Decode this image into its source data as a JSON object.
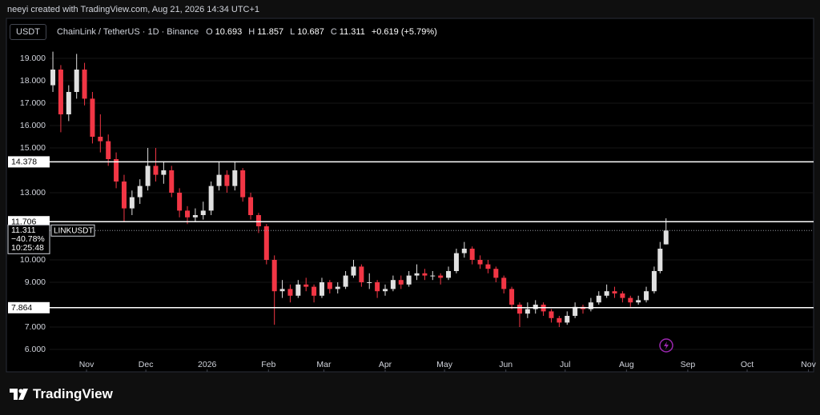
{
  "header": "neeyi created with TradingView.com, Aug 21, 2026 14:34 UTC+1",
  "footer": "TradingView",
  "chart_data": {
    "type": "candlestick",
    "symbol": "USDT",
    "title": "ChainLink / TetherUS · 1D · Binance",
    "ohlc_labels": {
      "open": "O",
      "high": "H",
      "low": "L",
      "close": "C"
    },
    "change": "+0.619 (+5.79%)",
    "up_color": "#e0e0e0",
    "down_color": "#f23645",
    "x": [
      0,
      4,
      8,
      12,
      16,
      20,
      24,
      28,
      32,
      36,
      40,
      44,
      48,
      52,
      56,
      60,
      64,
      68,
      72,
      76,
      80,
      84,
      88,
      92,
      96,
      100,
      104,
      108,
      112,
      116,
      120,
      124,
      128,
      132,
      136,
      140,
      144,
      148,
      152,
      156,
      160,
      164,
      168,
      172,
      176,
      180,
      184,
      188,
      192,
      196,
      200,
      204,
      208,
      212,
      216,
      220,
      224,
      228,
      232,
      236,
      240,
      244,
      248,
      252,
      256,
      260,
      264,
      268,
      272,
      276,
      280,
      284,
      288,
      292,
      296,
      300,
      304,
      307,
      310
    ],
    "open": [
      17.8,
      18.5,
      16.5,
      17.5,
      18.5,
      17.2,
      15.5,
      15.3,
      14.5,
      13.5,
      12.3,
      12.8,
      13.3,
      14.2,
      13.8,
      14.0,
      13.0,
      12.2,
      11.9,
      12.0,
      12.2,
      13.3,
      13.8,
      13.3,
      14.0,
      12.8,
      12.0,
      11.5,
      10.0,
      8.6,
      8.7,
      8.4,
      8.9,
      8.8,
      8.4,
      9.0,
      8.7,
      8.8,
      9.3,
      9.7,
      9.0,
      9.0,
      8.6,
      8.7,
      9.1,
      8.9,
      9.3,
      9.4,
      9.3,
      9.3,
      9.2,
      9.5,
      10.3,
      10.5,
      10.0,
      9.8,
      9.6,
      9.2,
      8.7,
      8.0,
      7.6,
      7.8,
      8.0,
      7.7,
      7.4,
      7.2,
      7.5,
      7.9,
      7.8,
      8.1,
      8.4,
      8.6,
      8.5,
      8.3,
      8.1,
      8.2,
      8.6,
      9.5,
      10.693
    ],
    "high": [
      19.3,
      18.7,
      17.8,
      19.2,
      18.8,
      17.5,
      16.5,
      15.6,
      14.8,
      13.8,
      13.1,
      13.6,
      15.0,
      15.0,
      14.4,
      14.2,
      13.2,
      12.4,
      12.3,
      12.6,
      13.5,
      14.4,
      14.0,
      14.4,
      14.1,
      13.0,
      12.1,
      11.6,
      10.2,
      9.1,
      8.9,
      9.1,
      9.2,
      8.9,
      9.2,
      9.1,
      9.0,
      9.5,
      10.0,
      9.8,
      9.4,
      9.1,
      8.9,
      9.3,
      9.3,
      9.5,
      9.8,
      9.6,
      9.5,
      9.4,
      9.7,
      10.5,
      10.8,
      10.6,
      10.2,
      10.0,
      9.7,
      9.3,
      8.8,
      8.1,
      8.1,
      8.2,
      8.1,
      7.8,
      7.5,
      7.7,
      8.1,
      8.0,
      8.3,
      8.6,
      8.9,
      8.8,
      8.6,
      8.4,
      8.4,
      8.8,
      9.7,
      10.8,
      11.857
    ],
    "low": [
      17.5,
      15.7,
      16.2,
      17.2,
      16.9,
      15.2,
      14.8,
      14.2,
      13.2,
      11.7,
      12.0,
      12.5,
      13.1,
      13.5,
      13.4,
      12.8,
      11.9,
      11.6,
      11.7,
      11.8,
      12.0,
      13.1,
      13.0,
      13.1,
      12.6,
      11.8,
      11.2,
      9.8,
      7.1,
      8.3,
      8.1,
      8.3,
      8.6,
      8.1,
      8.3,
      8.5,
      8.5,
      8.7,
      9.2,
      8.8,
      8.7,
      8.3,
      8.4,
      8.6,
      8.7,
      8.8,
      9.1,
      9.1,
      9.1,
      8.9,
      9.1,
      9.4,
      10.1,
      9.8,
      9.6,
      9.4,
      9.0,
      8.5,
      7.8,
      7.0,
      7.4,
      7.6,
      7.5,
      7.2,
      7.0,
      7.1,
      7.4,
      7.6,
      7.7,
      8.0,
      8.3,
      8.3,
      8.1,
      7.9,
      8.0,
      8.1,
      8.5,
      9.4,
      10.687
    ],
    "close": [
      18.5,
      16.5,
      17.5,
      18.5,
      17.2,
      15.5,
      15.3,
      14.5,
      13.5,
      12.3,
      12.8,
      13.3,
      14.2,
      13.8,
      14.0,
      13.0,
      12.2,
      11.9,
      12.0,
      12.2,
      13.3,
      13.8,
      13.3,
      14.0,
      12.8,
      12.0,
      11.5,
      10.0,
      8.6,
      8.7,
      8.4,
      8.9,
      8.8,
      8.4,
      9.0,
      8.7,
      8.8,
      9.3,
      9.7,
      9.0,
      9.0,
      8.6,
      8.7,
      9.1,
      8.9,
      9.3,
      9.4,
      9.3,
      9.3,
      9.2,
      9.5,
      10.3,
      10.5,
      10.0,
      9.8,
      9.6,
      9.2,
      8.7,
      8.0,
      7.6,
      7.8,
      8.0,
      7.7,
      7.4,
      7.2,
      7.5,
      7.9,
      7.8,
      8.1,
      8.4,
      8.6,
      8.5,
      8.3,
      8.1,
      8.2,
      8.6,
      9.5,
      10.5,
      11.311
    ],
    "xlim": [
      -23.5,
      384.6
    ],
    "xticks": [
      {
        "value": 17,
        "label": "Nov"
      },
      {
        "value": 47,
        "label": "Dec"
      },
      {
        "value": 78,
        "label": "2026"
      },
      {
        "value": 109,
        "label": "Feb"
      },
      {
        "value": 137,
        "label": "Mar"
      },
      {
        "value": 168,
        "label": "Apr"
      },
      {
        "value": 198,
        "label": "May"
      },
      {
        "value": 229,
        "label": "Jun"
      },
      {
        "value": 259,
        "label": "Jul"
      },
      {
        "value": 290,
        "label": "Aug"
      },
      {
        "value": 321,
        "label": "Sep"
      },
      {
        "value": 351,
        "label": "Oct"
      },
      {
        "value": 382,
        "label": "Nov"
      }
    ],
    "ylim": [
      5.0,
      19.393
    ],
    "yticks": [
      {
        "value": 19,
        "label": "19.000"
      },
      {
        "value": 18,
        "label": "18.000"
      },
      {
        "value": 17,
        "label": "17.000"
      },
      {
        "value": 16,
        "label": "16.000"
      },
      {
        "value": 15,
        "label": "15.000"
      },
      {
        "value": 13,
        "label": "13.000"
      },
      {
        "value": 10,
        "label": "10.000"
      },
      {
        "value": 9,
        "label": "9.000"
      },
      {
        "value": 7,
        "label": "7.000"
      },
      {
        "value": 6,
        "label": "6.000"
      }
    ],
    "levels": [
      14.378,
      11.706,
      7.864
    ],
    "last_price": {
      "symbol": "LINKUSDT",
      "change": "−40.78%",
      "countdown": "10:25:48"
    }
  }
}
